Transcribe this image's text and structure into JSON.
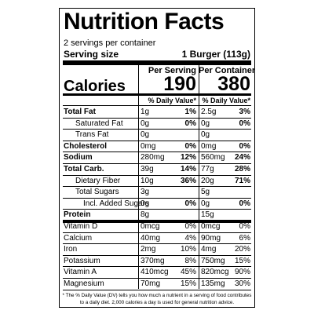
{
  "header": {
    "title": "Nutrition Facts",
    "servings": "2 servings per container",
    "serving_size_label": "Serving size",
    "serving_size_value": "1 Burger (113g)"
  },
  "columns": [
    "Per Serving",
    "Per Container"
  ],
  "calories": {
    "label": "Calories",
    "values": [
      "190",
      "380"
    ]
  },
  "daily_value_headers": [
    "% Daily Value*",
    "% Daily Value*"
  ],
  "rows": [
    {
      "name": "Total Fat",
      "cells": [
        [
          "1g",
          "1%"
        ],
        [
          "2.5g",
          "3%"
        ]
      ]
    },
    {
      "name": "Saturated Fat",
      "cells": [
        [
          "0g",
          "0%"
        ],
        [
          "0g",
          "0%"
        ]
      ]
    },
    {
      "name": "Trans Fat",
      "cells": [
        [
          "0g"
        ],
        [
          "0g"
        ]
      ]
    },
    {
      "name": "Cholesterol",
      "cells": [
        [
          "0mg",
          "0%"
        ],
        [
          "0mg",
          "0%"
        ]
      ]
    },
    {
      "name": "Sodium",
      "cells": [
        [
          "280mg",
          "12%"
        ],
        [
          "560mg",
          "24%"
        ]
      ]
    },
    {
      "name": "Total Carb.",
      "cells": [
        [
          "39g",
          "14%"
        ],
        [
          "77g",
          "28%"
        ]
      ]
    },
    {
      "name": "Dietary Fiber",
      "cells": [
        [
          "10g",
          "36%"
        ],
        [
          "20g",
          "71%"
        ]
      ]
    },
    {
      "name": "Total Sugars",
      "cells": [
        [
          "3g"
        ],
        [
          "5g"
        ]
      ]
    },
    {
      "name": "Incl. Added Sugars",
      "cells": [
        [
          "0g",
          "0%"
        ],
        [
          "0g",
          "0%"
        ]
      ]
    },
    {
      "name": "Protein",
      "cells": [
        [
          "8g"
        ],
        [
          "15g"
        ]
      ]
    },
    {
      "name": "Vitamin D",
      "cells": [
        [
          "0mcg",
          "0%"
        ],
        [
          "0mcg",
          "0%"
        ]
      ]
    },
    {
      "name": "Calcium",
      "cells": [
        [
          "40mg",
          "4%"
        ],
        [
          "90mg",
          "6%"
        ]
      ]
    },
    {
      "name": "Iron",
      "cells": [
        [
          "2mg",
          "10%"
        ],
        [
          "4mg",
          "20%"
        ]
      ]
    },
    {
      "name": "Potassium",
      "cells": [
        [
          "370mg",
          "8%"
        ],
        [
          "750mg",
          "15%"
        ]
      ]
    },
    {
      "name": "Vitamin A",
      "cells": [
        [
          "410mcg",
          "45%"
        ],
        [
          "820mcg",
          "90%"
        ]
      ]
    },
    {
      "name": "Magnesium",
      "cells": [
        [
          "70mg",
          "15%"
        ],
        [
          "135mg",
          "30%"
        ]
      ]
    }
  ],
  "footnote": "* The % Daily Value (DV) tells you how much a nutrient in a serving of food contributes to a daily diet. 2,000 calories a day is used for general nutrition advice."
}
